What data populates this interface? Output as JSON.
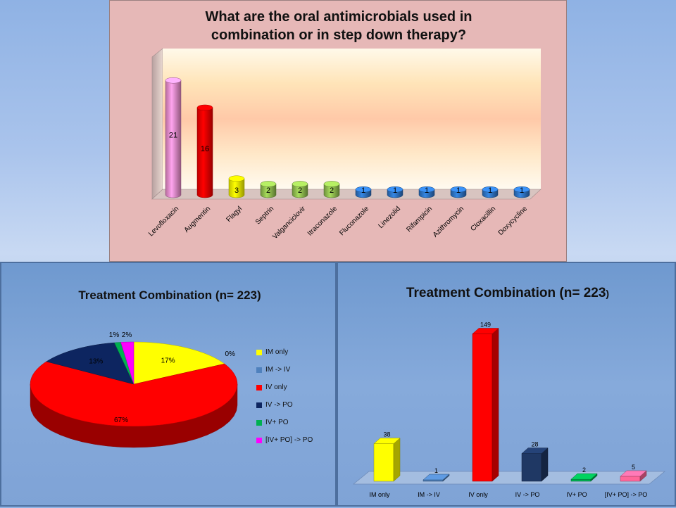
{
  "slide": {
    "top": {
      "title_line1": "What are the oral antimicrobials used in",
      "title_line2": "combination or in step down therapy?"
    },
    "left": {
      "title": "Treatment Combination (n= 223)"
    },
    "right": {
      "title_main": "Treatment Combination (n= 223",
      "title_paren": ")"
    }
  },
  "chart_data": [
    {
      "type": "bar",
      "title": "What are the oral antimicrobials used in combination or in step down therapy?",
      "categories": [
        "Levofloxacin",
        "Augmentin",
        "Flagyl",
        "Septrin",
        "Valganciclovir",
        "Itraconazole",
        "Fluconazole",
        "Linezolid",
        "Rifampicin",
        "Azithromycin",
        "Cloxacillin",
        "Doxycycline"
      ],
      "values": [
        21,
        16,
        3,
        2,
        2,
        2,
        1,
        1,
        1,
        1,
        1,
        1
      ],
      "colors": [
        "#f28fd0",
        "#ff0000",
        "#ffff00",
        "#92c050",
        "#92c050",
        "#92c050",
        "#2e75c6",
        "#2e75c6",
        "#2e75c6",
        "#2e75c6",
        "#2e75c6",
        "#2e75c6"
      ],
      "ylim": [
        0,
        24
      ],
      "shape": "3d-cylinder",
      "data_labels": true
    },
    {
      "type": "pie",
      "title": "Treatment Combination (n= 223)",
      "categories": [
        "IM only",
        "IM -> IV",
        "IV only",
        "IV -> PO",
        "IV+ PO",
        "[IV+ PO] -> PO"
      ],
      "values": [
        17,
        0,
        67,
        13,
        1,
        2
      ],
      "labels": [
        "17%",
        "0%",
        "67%",
        "13%",
        "1%",
        "2%"
      ],
      "colors": [
        "#ffff00",
        "#4f81bd",
        "#ff0000",
        "#0d2560",
        "#00b050",
        "#ff00ff"
      ],
      "legend": "right",
      "style": "3d"
    },
    {
      "type": "bar",
      "title": "Treatment Combination (n= 223)",
      "categories": [
        "IM only",
        "IM -> IV",
        "IV only",
        "IV -> PO",
        "IV+ PO",
        "[IV+ PO] -> PO"
      ],
      "values": [
        38,
        1,
        149,
        28,
        2,
        5
      ],
      "colors": [
        "#ffff00",
        "#4f81bd",
        "#ff0000",
        "#1f3864",
        "#00b050",
        "#ff6699"
      ],
      "ylim": [
        0,
        160
      ],
      "shape": "3d-block",
      "data_labels": true
    }
  ]
}
